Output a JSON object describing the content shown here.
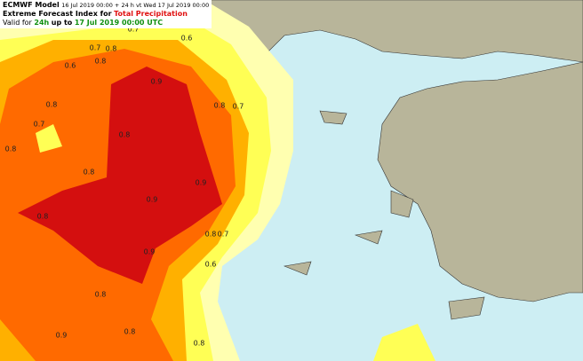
{
  "header": {
    "model": "ECMWF Model",
    "run": "16 Jul 2019 00:00 + 24 h vt Wed 17 Jul 2019 00:00",
    "title_prefix": "Extreme Forecast Index for",
    "parameter": "Total Precipitation",
    "valid_prefix": "Valid for",
    "period": "24h",
    "valid_middle": "up to",
    "valid_time": "17 Jul 2019 00:00 UTC"
  },
  "contour_labels": [
    "0.7",
    "0.6",
    "0.7",
    "0.8",
    "0.6",
    "0.8",
    "0.9",
    "0.8",
    "0.8",
    "0.7",
    "0.7",
    "0.8",
    "0.8",
    "0.8",
    "0.9",
    "0.9",
    "0.8",
    "0.8",
    "0.7",
    "0.9",
    "0.6",
    "0.8",
    "0.9",
    "0.8",
    "0.8"
  ]
}
